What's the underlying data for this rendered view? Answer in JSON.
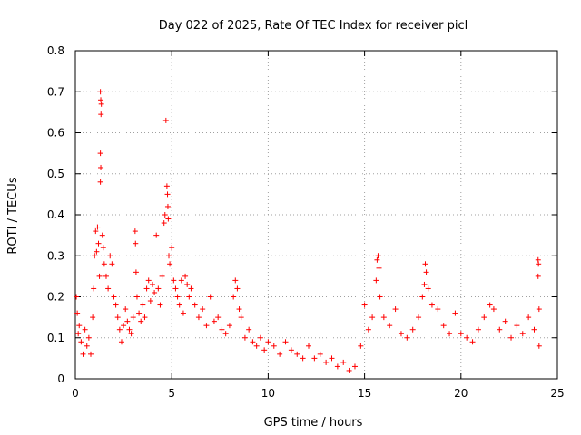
{
  "chart_data": {
    "type": "scatter",
    "title": "Day 022 of 2025, Rate Of TEC Index for receiver picl",
    "xlabel": "GPS time / hours",
    "ylabel": "ROTI / TECUs",
    "xlim": [
      0,
      25
    ],
    "ylim": [
      0,
      0.8
    ],
    "xticks": [
      0,
      5,
      10,
      15,
      20,
      25
    ],
    "yticks": [
      0,
      0.1,
      0.2,
      0.3,
      0.4,
      0.5,
      0.6,
      0.7,
      0.8
    ],
    "xtick_labels": [
      "0",
      "5",
      "10",
      "15",
      "20",
      "25"
    ],
    "ytick_labels": [
      "0",
      "0.1",
      "0.2",
      "0.3",
      "0.4",
      "0.5",
      "0.6",
      "0.7",
      "0.8"
    ],
    "grid": true,
    "marker": "plus",
    "color": "#ff0000",
    "series": [
      {
        "points": [
          [
            0.05,
            0.2
          ],
          [
            0.1,
            0.16
          ],
          [
            0.15,
            0.11
          ],
          [
            0.2,
            0.13
          ],
          [
            0.3,
            0.09
          ],
          [
            0.4,
            0.06
          ],
          [
            0.5,
            0.12
          ],
          [
            0.6,
            0.08
          ],
          [
            0.7,
            0.1
          ],
          [
            0.8,
            0.06
          ],
          [
            0.9,
            0.15
          ],
          [
            0.95,
            0.22
          ],
          [
            1.0,
            0.3
          ],
          [
            1.05,
            0.36
          ],
          [
            1.1,
            0.31
          ],
          [
            1.15,
            0.37
          ],
          [
            1.2,
            0.33
          ],
          [
            1.25,
            0.25
          ],
          [
            1.3,
            0.7
          ],
          [
            1.32,
            0.68
          ],
          [
            1.35,
            0.67
          ],
          [
            1.33,
            0.645
          ],
          [
            1.3,
            0.55
          ],
          [
            1.32,
            0.515
          ],
          [
            1.3,
            0.48
          ],
          [
            1.4,
            0.35
          ],
          [
            1.45,
            0.32
          ],
          [
            1.5,
            0.28
          ],
          [
            1.6,
            0.25
          ],
          [
            1.7,
            0.22
          ],
          [
            1.8,
            0.3
          ],
          [
            1.9,
            0.28
          ],
          [
            2.0,
            0.2
          ],
          [
            2.1,
            0.18
          ],
          [
            2.2,
            0.15
          ],
          [
            2.3,
            0.12
          ],
          [
            2.4,
            0.09
          ],
          [
            2.5,
            0.13
          ],
          [
            2.6,
            0.17
          ],
          [
            2.7,
            0.14
          ],
          [
            2.8,
            0.12
          ],
          [
            2.9,
            0.11
          ],
          [
            3.0,
            0.15
          ],
          [
            3.1,
            0.36
          ],
          [
            3.12,
            0.33
          ],
          [
            3.15,
            0.26
          ],
          [
            3.2,
            0.2
          ],
          [
            3.3,
            0.16
          ],
          [
            3.4,
            0.14
          ],
          [
            3.5,
            0.18
          ],
          [
            3.6,
            0.15
          ],
          [
            3.7,
            0.22
          ],
          [
            3.8,
            0.24
          ],
          [
            3.9,
            0.19
          ],
          [
            4.0,
            0.23
          ],
          [
            4.1,
            0.21
          ],
          [
            4.2,
            0.35
          ],
          [
            4.3,
            0.22
          ],
          [
            4.4,
            0.18
          ],
          [
            4.5,
            0.25
          ],
          [
            4.6,
            0.38
          ],
          [
            4.65,
            0.4
          ],
          [
            4.7,
            0.63
          ],
          [
            4.75,
            0.47
          ],
          [
            4.78,
            0.45
          ],
          [
            4.8,
            0.42
          ],
          [
            4.82,
            0.39
          ],
          [
            4.85,
            0.3
          ],
          [
            4.9,
            0.28
          ],
          [
            5.0,
            0.32
          ],
          [
            5.1,
            0.24
          ],
          [
            5.2,
            0.22
          ],
          [
            5.3,
            0.2
          ],
          [
            5.4,
            0.18
          ],
          [
            5.5,
            0.24
          ],
          [
            5.6,
            0.16
          ],
          [
            5.7,
            0.25
          ],
          [
            5.8,
            0.23
          ],
          [
            5.9,
            0.2
          ],
          [
            6.0,
            0.22
          ],
          [
            6.2,
            0.18
          ],
          [
            6.4,
            0.15
          ],
          [
            6.6,
            0.17
          ],
          [
            6.8,
            0.13
          ],
          [
            7.0,
            0.2
          ],
          [
            7.2,
            0.14
          ],
          [
            7.4,
            0.15
          ],
          [
            7.6,
            0.12
          ],
          [
            7.8,
            0.11
          ],
          [
            8.0,
            0.13
          ],
          [
            8.2,
            0.2
          ],
          [
            8.3,
            0.24
          ],
          [
            8.4,
            0.22
          ],
          [
            8.5,
            0.17
          ],
          [
            8.6,
            0.15
          ],
          [
            8.8,
            0.1
          ],
          [
            9.0,
            0.12
          ],
          [
            9.2,
            0.09
          ],
          [
            9.4,
            0.08
          ],
          [
            9.6,
            0.1
          ],
          [
            9.8,
            0.07
          ],
          [
            10.0,
            0.09
          ],
          [
            10.3,
            0.08
          ],
          [
            10.6,
            0.06
          ],
          [
            10.9,
            0.09
          ],
          [
            11.2,
            0.07
          ],
          [
            11.5,
            0.06
          ],
          [
            11.8,
            0.05
          ],
          [
            12.1,
            0.08
          ],
          [
            12.4,
            0.05
          ],
          [
            12.7,
            0.06
          ],
          [
            13.0,
            0.04
          ],
          [
            13.3,
            0.05
          ],
          [
            13.6,
            0.03
          ],
          [
            13.9,
            0.04
          ],
          [
            14.2,
            0.02
          ],
          [
            14.5,
            0.03
          ],
          [
            14.8,
            0.08
          ],
          [
            15.0,
            0.18
          ],
          [
            15.2,
            0.12
          ],
          [
            15.4,
            0.15
          ],
          [
            15.6,
            0.24
          ],
          [
            15.65,
            0.29
          ],
          [
            15.7,
            0.3
          ],
          [
            15.75,
            0.27
          ],
          [
            15.8,
            0.2
          ],
          [
            16.0,
            0.15
          ],
          [
            16.3,
            0.13
          ],
          [
            16.6,
            0.17
          ],
          [
            16.9,
            0.11
          ],
          [
            17.2,
            0.1
          ],
          [
            17.5,
            0.12
          ],
          [
            17.8,
            0.15
          ],
          [
            18.0,
            0.2
          ],
          [
            18.1,
            0.23
          ],
          [
            18.15,
            0.28
          ],
          [
            18.2,
            0.26
          ],
          [
            18.3,
            0.22
          ],
          [
            18.5,
            0.18
          ],
          [
            18.8,
            0.17
          ],
          [
            19.1,
            0.13
          ],
          [
            19.4,
            0.11
          ],
          [
            19.7,
            0.16
          ],
          [
            20.0,
            0.11
          ],
          [
            20.3,
            0.1
          ],
          [
            20.6,
            0.09
          ],
          [
            20.9,
            0.12
          ],
          [
            21.2,
            0.15
          ],
          [
            21.5,
            0.18
          ],
          [
            21.7,
            0.17
          ],
          [
            22.0,
            0.12
          ],
          [
            22.3,
            0.14
          ],
          [
            22.6,
            0.1
          ],
          [
            22.9,
            0.13
          ],
          [
            23.2,
            0.11
          ],
          [
            23.5,
            0.15
          ],
          [
            23.8,
            0.12
          ],
          [
            24.0,
            0.29
          ],
          [
            24.02,
            0.28
          ],
          [
            24.0,
            0.25
          ],
          [
            24.05,
            0.17
          ],
          [
            24.05,
            0.08
          ]
        ]
      }
    ]
  }
}
